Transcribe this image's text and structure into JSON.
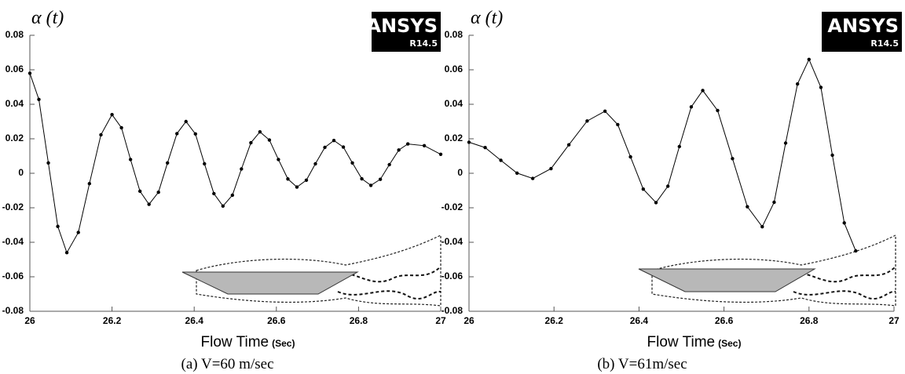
{
  "chart_data": [
    {
      "type": "line",
      "y_label": "α (t)",
      "x_label": "Flow Time",
      "x_label_unit": "(Sec)",
      "caption": "(a) V=60 m/sec",
      "logo_text": "ANSYS",
      "logo_version": "R14.5",
      "xlim": [
        26,
        27
      ],
      "xticks": [
        26,
        26.2,
        26.4,
        26.6,
        26.8,
        27
      ],
      "ylim": [
        -0.08,
        0.08
      ],
      "yticks": [
        0.08,
        0.06,
        0.04,
        0.02,
        0,
        -0.02,
        -0.04,
        -0.06,
        -0.08
      ],
      "x": [
        26.0,
        26.022,
        26.045,
        26.068,
        26.09,
        26.118,
        26.145,
        26.173,
        26.2,
        26.223,
        26.245,
        26.268,
        26.29,
        26.313,
        26.335,
        26.358,
        26.38,
        26.403,
        26.425,
        26.448,
        26.47,
        26.493,
        26.515,
        26.538,
        26.56,
        26.583,
        26.605,
        26.628,
        26.65,
        26.673,
        26.695,
        26.718,
        26.74,
        26.763,
        26.785,
        26.808,
        26.83,
        26.853,
        26.875,
        26.898,
        26.92,
        26.96,
        27.0
      ],
      "series": [
        {
          "color": "#000000",
          "values": [
            0.058,
            0.0428,
            0.006,
            -0.0308,
            -0.046,
            -0.0343,
            -0.006,
            0.0223,
            0.034,
            0.0264,
            0.008,
            -0.0104,
            -0.018,
            -0.011,
            0.006,
            0.023,
            0.03,
            0.0228,
            0.0055,
            -0.0118,
            -0.019,
            -0.0127,
            0.0025,
            0.0177,
            0.024,
            0.0193,
            0.008,
            -0.0033,
            -0.008,
            -0.004,
            0.0055,
            0.015,
            0.019,
            0.0152,
            0.006,
            -0.0032,
            -0.007,
            -0.0035,
            0.005,
            0.0135,
            0.017,
            0.016,
            0.011
          ]
        }
      ]
    },
    {
      "type": "line",
      "y_label": "α (t)",
      "x_label": "Flow Time",
      "x_label_unit": "(Sec)",
      "caption": "(b) V=61m/sec",
      "logo_text": "ANSYS",
      "logo_version": "R14.5",
      "xlim": [
        26,
        27
      ],
      "xticks": [
        26,
        26.2,
        26.4,
        26.6,
        26.8,
        27
      ],
      "ylim": [
        -0.08,
        0.08
      ],
      "yticks": [
        0.08,
        0.06,
        0.04,
        0.02,
        0,
        -0.02,
        -0.04,
        -0.06,
        -0.08
      ],
      "x": [
        26.0,
        26.038,
        26.075,
        26.113,
        26.15,
        26.193,
        26.235,
        26.278,
        26.32,
        26.35,
        26.38,
        26.41,
        26.44,
        26.468,
        26.495,
        26.523,
        26.55,
        26.585,
        26.62,
        26.655,
        26.69,
        26.718,
        26.745,
        26.773,
        26.8,
        26.828,
        26.855,
        26.883,
        26.91
      ],
      "series": [
        {
          "color": "#000000",
          "values": [
            0.018,
            0.0149,
            0.0075,
            0.0001,
            -0.003,
            0.0027,
            0.0165,
            0.0303,
            0.036,
            0.0282,
            0.0095,
            -0.0092,
            -0.017,
            -0.0075,
            0.0155,
            0.0385,
            0.048,
            0.0364,
            0.0085,
            -0.0194,
            -0.031,
            -0.0168,
            0.0175,
            0.0518,
            0.066,
            0.0498,
            0.0105,
            -0.0288,
            -0.045
          ]
        }
      ]
    }
  ]
}
